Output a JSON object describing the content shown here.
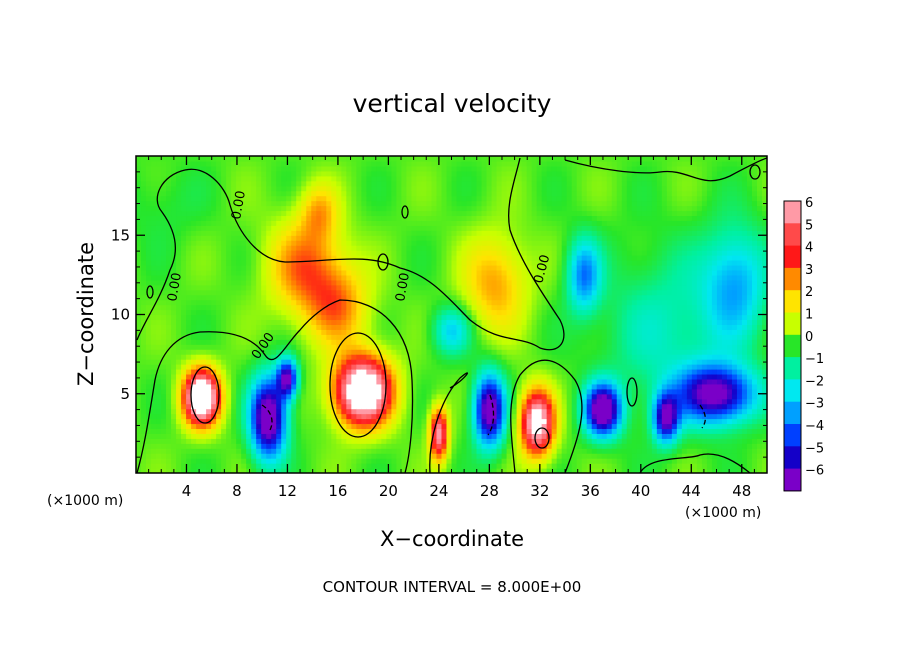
{
  "chart_data": {
    "type": "heatmap",
    "title": "vertical velocity",
    "xlabel": "X−coordinate",
    "ylabel": "Z−coordinate",
    "x_unit_left": "(×1000 m)",
    "x_unit_right": "(×1000 m)",
    "xlim": [
      0,
      50
    ],
    "ylim": [
      0,
      20
    ],
    "xticks": [
      4,
      8,
      12,
      16,
      20,
      24,
      28,
      32,
      36,
      40,
      44,
      48
    ],
    "xtick_labels": [
      "4",
      "8",
      "12",
      "16",
      "20",
      "24",
      "28",
      "32",
      "36",
      "40",
      "44",
      "48"
    ],
    "yticks": [
      5,
      10,
      15
    ],
    "ytick_labels": [
      "5",
      "10",
      "15"
    ],
    "colorbar": {
      "levels": [
        6,
        5,
        4,
        3,
        2,
        1,
        0,
        -1,
        -2,
        -3,
        -4,
        -5,
        -6
      ],
      "labels": [
        "6",
        "5",
        "4",
        "3",
        "2",
        "1",
        "0",
        "−1",
        "−2",
        "−3",
        "−4",
        "−5",
        "−6"
      ],
      "colors": [
        "#ff9aa6",
        "#ff4a4a",
        "#ff1818",
        "#ff8a00",
        "#ffe400",
        "#c8ff00",
        "#28e628",
        "#00f0a0",
        "#00e8f0",
        "#00a0ff",
        "#0040ff",
        "#1400c8",
        "#7a00c8"
      ]
    },
    "contour_labels": [
      "0.00",
      "0.00",
      "0.00",
      "0.00",
      "0.00"
    ],
    "footnote": "CONTOUR INTERVAL = 8.000E+00",
    "features": [
      {
        "x": 5.2,
        "z": 4.8,
        "w": 1.4,
        "h": 1.7,
        "a": 9
      },
      {
        "x": 18.0,
        "z": 5.2,
        "w": 2.2,
        "h": 2.1,
        "a": 9
      },
      {
        "x": 13.5,
        "z": 13.0,
        "w": 3.0,
        "h": 3.0,
        "a": 3
      },
      {
        "x": 16.0,
        "z": 10.5,
        "w": 2.5,
        "h": 2.5,
        "a": 2.5
      },
      {
        "x": 14.5,
        "z": 16.5,
        "w": 1.5,
        "h": 1.8,
        "a": 2
      },
      {
        "x": 28.5,
        "z": 12.0,
        "w": 2.5,
        "h": 3.0,
        "a": 2.5
      },
      {
        "x": 24.0,
        "z": 2.5,
        "w": 0.7,
        "h": 1.6,
        "a": 6
      },
      {
        "x": 31.8,
        "z": 3.2,
        "w": 1.3,
        "h": 2.0,
        "a": 7.5
      },
      {
        "x": 10.5,
        "z": 3.5,
        "w": 1.4,
        "h": 2.5,
        "a": -7.5
      },
      {
        "x": 12.0,
        "z": 6.0,
        "w": 0.8,
        "h": 1.2,
        "a": -6
      },
      {
        "x": 28.0,
        "z": 4.0,
        "w": 1.2,
        "h": 2.2,
        "a": -7
      },
      {
        "x": 37.0,
        "z": 4.0,
        "w": 1.4,
        "h": 1.6,
        "a": -7.5
      },
      {
        "x": 46.0,
        "z": 5.0,
        "w": 3.0,
        "h": 1.8,
        "a": -6.5
      },
      {
        "x": 42.0,
        "z": 3.5,
        "w": 1.0,
        "h": 1.5,
        "a": -6
      },
      {
        "x": 35.5,
        "z": 12.5,
        "w": 1.3,
        "h": 2.3,
        "a": -3.5
      },
      {
        "x": 47.5,
        "z": 12.0,
        "w": 2.5,
        "h": 3.5,
        "a": -3
      },
      {
        "x": 42.0,
        "z": 9.0,
        "w": 5.0,
        "h": 5.0,
        "a": -1.6
      },
      {
        "x": 25.0,
        "z": 9.0,
        "w": 1.5,
        "h": 1.5,
        "a": -2.5
      },
      {
        "x": 2.0,
        "z": 17.0,
        "w": 3.0,
        "h": 2.5,
        "a": -0.5
      }
    ]
  }
}
